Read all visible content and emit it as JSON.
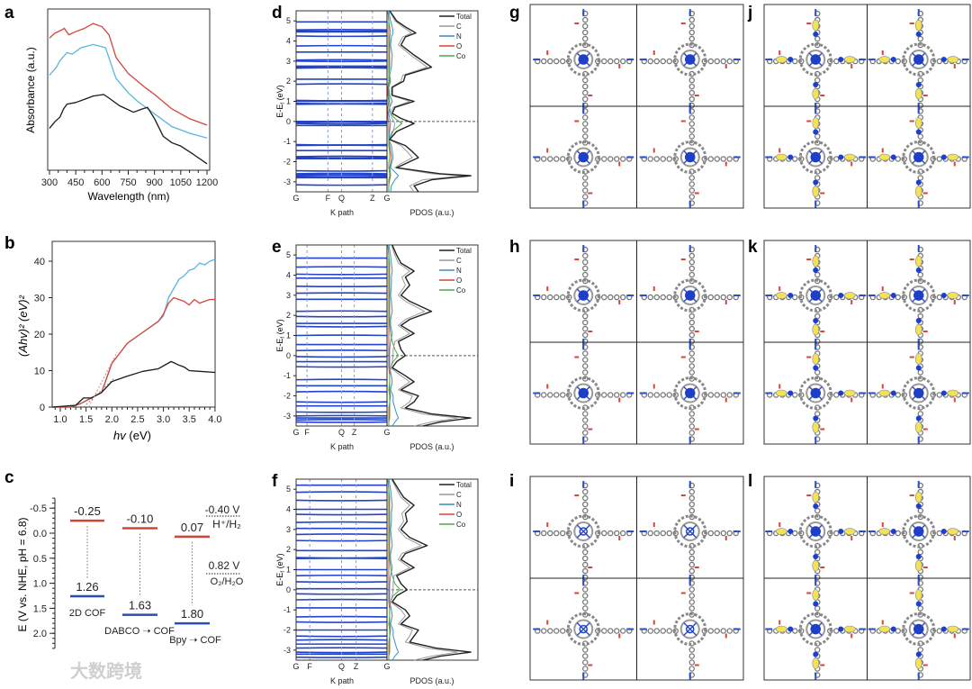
{
  "panel_labels": [
    "a",
    "b",
    "c",
    "d",
    "e",
    "f",
    "g",
    "h",
    "i",
    "j",
    "k",
    "l"
  ],
  "watermark": "大数跨境",
  "chart_data": [
    {
      "id": "a",
      "type": "line",
      "xlabel": "Wavelength (nm)",
      "ylabel": "Absorbance (a.u.)",
      "xlim": [
        300,
        1200
      ],
      "ylim": [
        0,
        1
      ],
      "xticks": [
        300,
        450,
        600,
        750,
        900,
        1050,
        1200
      ],
      "series": [
        {
          "name": "red",
          "color": "#d0473a",
          "x": [
            300,
            330,
            370,
            385,
            410,
            450,
            500,
            550,
            600,
            640,
            680,
            750,
            850,
            900,
            1000,
            1100,
            1200
          ],
          "y": [
            0.82,
            0.85,
            0.87,
            0.88,
            0.84,
            0.86,
            0.88,
            0.91,
            0.89,
            0.84,
            0.7,
            0.6,
            0.51,
            0.47,
            0.38,
            0.32,
            0.28
          ]
        },
        {
          "name": "blue",
          "color": "#5bb5de",
          "x": [
            300,
            340,
            360,
            400,
            430,
            480,
            550,
            620,
            680,
            750,
            800,
            900,
            1000,
            1100,
            1200
          ],
          "y": [
            0.59,
            0.64,
            0.68,
            0.73,
            0.72,
            0.76,
            0.78,
            0.76,
            0.57,
            0.48,
            0.43,
            0.35,
            0.27,
            0.23,
            0.2
          ]
        },
        {
          "name": "black",
          "color": "#1a1a1a",
          "x": [
            300,
            330,
            360,
            380,
            400,
            450,
            500,
            550,
            610,
            650,
            700,
            780,
            830,
            860,
            900,
            950,
            1000,
            1050,
            1120,
            1200
          ],
          "y": [
            0.26,
            0.3,
            0.33,
            0.38,
            0.41,
            0.42,
            0.44,
            0.46,
            0.47,
            0.44,
            0.4,
            0.36,
            0.38,
            0.39,
            0.32,
            0.21,
            0.17,
            0.15,
            0.1,
            0.04
          ]
        }
      ]
    },
    {
      "id": "b",
      "type": "line",
      "xlabel_italic": "hv",
      "xlabel_unit": " (eV)",
      "ylabel": "(Ahv)² (eV)²",
      "xlim": [
        0.84,
        4.0
      ],
      "ylim": [
        0,
        45
      ],
      "xticks": [
        1.0,
        1.5,
        2.0,
        2.5,
        3.0,
        3.5,
        4.0
      ],
      "yticks": [
        0,
        10,
        20,
        30,
        40
      ],
      "series": [
        {
          "name": "blue",
          "color": "#5bb5de",
          "x": [
            0.84,
            1.2,
            1.4,
            1.6,
            1.8,
            2.0,
            2.3,
            2.6,
            2.9,
            3.0,
            3.1,
            3.3,
            3.4,
            3.5,
            3.6,
            3.7,
            3.8,
            3.9,
            4.0
          ],
          "y": [
            0,
            0,
            1,
            2.5,
            4,
            12,
            17.5,
            20.5,
            23.5,
            25,
            30,
            35,
            36,
            37.5,
            38,
            39.5,
            39,
            40,
            40.5
          ]
        },
        {
          "name": "red",
          "color": "#d0473a",
          "x": [
            0.84,
            1.2,
            1.4,
            1.6,
            1.8,
            2.0,
            2.3,
            2.6,
            2.9,
            3.0,
            3.1,
            3.2,
            3.3,
            3.4,
            3.5,
            3.6,
            3.7,
            3.8,
            3.9,
            4.0
          ],
          "y": [
            0,
            0,
            1,
            2.5,
            4,
            12,
            17.5,
            20.5,
            23.5,
            25.5,
            28.5,
            30,
            29.5,
            29,
            28,
            29.5,
            28.5,
            29,
            29.5,
            29.5
          ]
        },
        {
          "name": "black",
          "color": "#1a1a1a",
          "x": [
            0.84,
            1.3,
            1.45,
            1.6,
            1.8,
            2.0,
            2.3,
            2.6,
            2.9,
            3.15,
            3.3,
            3.4,
            3.5,
            3.7,
            4.0
          ],
          "y": [
            0,
            0.5,
            2.5,
            2.5,
            4,
            7,
            8.5,
            9.8,
            10.5,
            12.5,
            11.5,
            11,
            10,
            9.8,
            9.5
          ]
        }
      ]
    },
    {
      "id": "c",
      "type": "bar",
      "ylabel": "E (V vs. NHE, pH = 6.8)",
      "ylim": [
        -0.7,
        2.3
      ],
      "yticks": [
        "-0.5",
        "0.0",
        "0.5",
        "1.0",
        "1.5",
        "2.0"
      ],
      "ytick_values": [
        -0.5,
        0,
        0.5,
        1,
        1.5,
        2
      ],
      "materials": [
        {
          "name": "2D COF",
          "cb": -0.25,
          "vb": 1.26,
          "cb_label": "-0.25",
          "vb_label": "1.26"
        },
        {
          "name": "DABCO ➝ COF",
          "cb": -0.1,
          "vb": 1.63,
          "cb_label": "-0.10",
          "vb_label": "1.63"
        },
        {
          "name": "Bpy ➝ COF",
          "cb": 0.07,
          "vb": 1.8,
          "cb_label": "0.07",
          "vb_label": "1.80"
        }
      ],
      "references": [
        {
          "value_label": "-0.40 V",
          "couple": "H⁺/H₂"
        },
        {
          "value_label": "0.82 V",
          "couple": "O₂/H₂O"
        }
      ],
      "colors": {
        "cb": "#d0473a",
        "vb": "#2a4fb0"
      }
    },
    {
      "id": "d",
      "type": "line",
      "ylabel": "E-E",
      "ylabel_sub": "f",
      "ylabel_unit": " (eV)",
      "xlabel_bands": "K path",
      "xlabel_pdos": "PDOS (a.u.)",
      "ylim": [
        -3.5,
        5.5
      ],
      "yticks": [
        5,
        4,
        3,
        2,
        1,
        0,
        -1,
        -2,
        -3
      ],
      "kpoints": [
        {
          "label": "G",
          "pos": 0
        },
        {
          "label": "F",
          "pos": 0.35
        },
        {
          "label": "Q",
          "pos": 0.5
        },
        {
          "label": "Z",
          "pos": 0.84
        },
        {
          "label": "G",
          "pos": 1
        }
      ],
      "bands": [
        4.95,
        4.55,
        4.5,
        4.45,
        4.25,
        3.75,
        3.45,
        3.05,
        3.0,
        2.75,
        2.7,
        2.65,
        2.1,
        1.85,
        1.05,
        1.0,
        0.9,
        0.85,
        0.0,
        -0.05,
        -0.1,
        -0.2,
        -1.15,
        -1.2,
        -1.45,
        -1.75,
        -1.8,
        -1.85,
        -2.45,
        -2.6,
        -2.65,
        -2.7,
        -2.75,
        -2.8,
        -3.15
      ],
      "legend": [
        "Total",
        "C",
        "N",
        "O",
        "Co"
      ],
      "pdos": {
        "E": [
          5.5,
          5.0,
          4.7,
          4.4,
          4.2,
          3.8,
          3.3,
          2.7,
          2.3,
          2.0,
          1.7,
          1.3,
          1.0,
          0.7,
          0.4,
          0.15,
          -0.1,
          -0.5,
          -0.9,
          -1.2,
          -1.5,
          -1.8,
          -2.1,
          -2.3,
          -2.6,
          -2.7,
          -2.9,
          -3.2,
          -3.5
        ],
        "Total": [
          0.02,
          0.1,
          0.2,
          0.32,
          0.2,
          0.15,
          0.3,
          0.5,
          0.2,
          0.18,
          0.05,
          0.05,
          0.3,
          0.08,
          0.05,
          0.15,
          0.3,
          0.1,
          0.02,
          0.2,
          0.28,
          0.35,
          0.2,
          0.1,
          0.6,
          0.95,
          0.5,
          0.3,
          0.35
        ],
        "C": [
          0.02,
          0.08,
          0.17,
          0.27,
          0.17,
          0.12,
          0.26,
          0.45,
          0.17,
          0.15,
          0.04,
          0.04,
          0.25,
          0.06,
          0.03,
          0.05,
          0.08,
          0.06,
          0.02,
          0.15,
          0.22,
          0.28,
          0.15,
          0.08,
          0.5,
          0.85,
          0.4,
          0.25,
          0.3
        ],
        "N": [
          0.01,
          0.03,
          0.05,
          0.06,
          0.04,
          0.03,
          0.05,
          0.04,
          0.02,
          0.03,
          0.01,
          0.02,
          0.05,
          0.02,
          0.01,
          0.02,
          0.03,
          0.02,
          0.01,
          0.04,
          0.05,
          0.06,
          0.04,
          0.03,
          0.1,
          0.12,
          0.08,
          0.04,
          0.03
        ],
        "O": [
          0,
          0.01,
          0.01,
          0.01,
          0.01,
          0.01,
          0.01,
          0.01,
          0.01,
          0.01,
          0,
          0,
          0.01,
          0,
          0,
          0,
          0.01,
          0.01,
          0.01,
          0.02,
          0.03,
          0.04,
          0.03,
          0.02,
          0.03,
          0.03,
          0.02,
          0.01,
          0.01
        ],
        "Co": [
          0,
          0.01,
          0.02,
          0.03,
          0.02,
          0.02,
          0.02,
          0.02,
          0.01,
          0.02,
          0.01,
          0.01,
          0.02,
          0.02,
          0.03,
          0.08,
          0.16,
          0.05,
          0.01,
          0.01,
          0.02,
          0.02,
          0.01,
          0.01,
          0.02,
          0.02,
          0.01,
          0.01,
          0.01
        ]
      }
    },
    {
      "id": "e",
      "type": "line",
      "ylabel": "E-E",
      "ylabel_sub": "f",
      "ylabel_unit": " (eV)",
      "xlabel_bands": "K path",
      "xlabel_pdos": "PDOS (a.u.)",
      "ylim": [
        -3.5,
        5.5
      ],
      "yticks": [
        5,
        4,
        3,
        2,
        1,
        0,
        -1,
        -2,
        -3
      ],
      "kpoints": [
        {
          "label": "G",
          "pos": 0
        },
        {
          "label": "F",
          "pos": 0.12
        },
        {
          "label": "Q",
          "pos": 0.5
        },
        {
          "label": "Z",
          "pos": 0.64
        },
        {
          "label": "G",
          "pos": 1
        }
      ],
      "bands": [
        4.85,
        4.4,
        4.05,
        3.85,
        3.45,
        3.1,
        2.8,
        2.2,
        1.95,
        1.6,
        1.45,
        1.0,
        0.55,
        0.25,
        -0.05,
        -0.3,
        -0.55,
        -1.2,
        -1.5,
        -1.8,
        -2.3,
        -2.5,
        -2.8,
        -3.0,
        -3.1,
        -3.2,
        -3.3
      ],
      "legend": [
        "Total",
        "C",
        "N",
        "O",
        "Co"
      ],
      "pdos": {
        "E": [
          5.5,
          5.0,
          4.6,
          4.2,
          3.9,
          3.5,
          3.0,
          2.7,
          2.2,
          1.8,
          1.5,
          1.1,
          0.7,
          0.3,
          0.0,
          -0.3,
          -0.6,
          -1.0,
          -1.3,
          -1.7,
          -2.0,
          -2.3,
          -2.6,
          -2.9,
          -3.1,
          -3.3,
          -3.5
        ],
        "Total": [
          0.05,
          0.1,
          0.15,
          0.3,
          0.2,
          0.25,
          0.15,
          0.25,
          0.5,
          0.25,
          0.15,
          0.3,
          0.12,
          0.15,
          0.2,
          0.1,
          0.05,
          0.2,
          0.3,
          0.15,
          0.35,
          0.3,
          0.2,
          0.5,
          0.95,
          0.6,
          0.4
        ],
        "C": [
          0.04,
          0.08,
          0.12,
          0.25,
          0.16,
          0.2,
          0.12,
          0.2,
          0.42,
          0.2,
          0.12,
          0.25,
          0.08,
          0.06,
          0.06,
          0.05,
          0.03,
          0.15,
          0.25,
          0.12,
          0.28,
          0.25,
          0.15,
          0.4,
          0.8,
          0.5,
          0.3
        ],
        "N": [
          0.01,
          0.03,
          0.04,
          0.05,
          0.04,
          0.04,
          0.03,
          0.04,
          0.05,
          0.03,
          0.03,
          0.05,
          0.03,
          0.02,
          0.02,
          0.02,
          0.02,
          0.04,
          0.05,
          0.03,
          0.06,
          0.06,
          0.08,
          0.1,
          0.12,
          0.08,
          0.05
        ],
        "O": [
          0,
          0.01,
          0.01,
          0.01,
          0.01,
          0.01,
          0.01,
          0.01,
          0.01,
          0.01,
          0.01,
          0.01,
          0.01,
          0.01,
          0.01,
          0.01,
          0.01,
          0.02,
          0.02,
          0.02,
          0.03,
          0.02,
          0.02,
          0.02,
          0.02,
          0.01,
          0.01
        ],
        "Co": [
          0,
          0.01,
          0.02,
          0.02,
          0.02,
          0.02,
          0.02,
          0.02,
          0.02,
          0.02,
          0.02,
          0.03,
          0.05,
          0.08,
          0.12,
          0.06,
          0.03,
          0.02,
          0.02,
          0.01,
          0.02,
          0.02,
          0.01,
          0.01,
          0.01,
          0.01,
          0.01
        ]
      }
    },
    {
      "id": "f",
      "type": "line",
      "ylabel": "E-E",
      "ylabel_sub": "f",
      "ylabel_unit": " (eV)",
      "xlabel_bands": "K path",
      "xlabel_pdos": "PDOS (a.u.)",
      "ylim": [
        -3.5,
        5.5
      ],
      "yticks": [
        5,
        4,
        3,
        2,
        1,
        0,
        -1,
        -2,
        -3
      ],
      "kpoints": [
        {
          "label": "G",
          "pos": 0
        },
        {
          "label": "F",
          "pos": 0.15
        },
        {
          "label": "Q",
          "pos": 0.5
        },
        {
          "label": "Z",
          "pos": 0.66
        },
        {
          "label": "G",
          "pos": 1
        }
      ],
      "bands": [
        5.2,
        4.85,
        4.45,
        4.0,
        3.75,
        3.35,
        3.05,
        2.75,
        2.45,
        1.95,
        1.6,
        1.55,
        1.0,
        0.7,
        0.4,
        0.05,
        -0.2,
        -0.5,
        -0.9,
        -1.35,
        -1.6,
        -2.0,
        -2.3,
        -2.5,
        -2.7,
        -2.9,
        -3.1,
        -3.2,
        -3.35
      ],
      "legend": [
        "Total",
        "C",
        "N",
        "O",
        "Co"
      ],
      "pdos": {
        "E": [
          5.5,
          5.0,
          4.6,
          4.2,
          3.8,
          3.4,
          3.0,
          2.6,
          2.2,
          1.8,
          1.5,
          1.1,
          0.7,
          0.3,
          0.0,
          -0.3,
          -0.6,
          -1.0,
          -1.3,
          -1.7,
          -2.0,
          -2.3,
          -2.6,
          -2.9,
          -3.1,
          -3.3,
          -3.5
        ],
        "Total": [
          0.05,
          0.12,
          0.18,
          0.3,
          0.2,
          0.22,
          0.15,
          0.25,
          0.45,
          0.2,
          0.15,
          0.3,
          0.1,
          0.15,
          0.22,
          0.1,
          0.05,
          0.2,
          0.25,
          0.15,
          0.35,
          0.3,
          0.25,
          0.55,
          0.95,
          0.6,
          0.4
        ],
        "C": [
          0.04,
          0.1,
          0.15,
          0.25,
          0.16,
          0.18,
          0.12,
          0.2,
          0.38,
          0.16,
          0.12,
          0.25,
          0.07,
          0.06,
          0.06,
          0.05,
          0.03,
          0.15,
          0.2,
          0.12,
          0.28,
          0.25,
          0.2,
          0.45,
          0.8,
          0.5,
          0.3
        ],
        "N": [
          0.01,
          0.03,
          0.04,
          0.05,
          0.04,
          0.04,
          0.03,
          0.04,
          0.05,
          0.03,
          0.03,
          0.05,
          0.03,
          0.02,
          0.02,
          0.02,
          0.02,
          0.04,
          0.05,
          0.03,
          0.06,
          0.06,
          0.08,
          0.1,
          0.12,
          0.08,
          0.05
        ],
        "O": [
          0,
          0.01,
          0.01,
          0.01,
          0.01,
          0.01,
          0.01,
          0.01,
          0.01,
          0.01,
          0.01,
          0.01,
          0.01,
          0.01,
          0.01,
          0.01,
          0.01,
          0.02,
          0.02,
          0.02,
          0.03,
          0.02,
          0.02,
          0.02,
          0.02,
          0.01,
          0.01
        ],
        "Co": [
          0,
          0.01,
          0.02,
          0.02,
          0.02,
          0.02,
          0.02,
          0.02,
          0.02,
          0.02,
          0.02,
          0.03,
          0.05,
          0.08,
          0.14,
          0.06,
          0.03,
          0.02,
          0.02,
          0.01,
          0.02,
          0.02,
          0.01,
          0.01,
          0.01,
          0.01,
          0.01
        ]
      }
    }
  ],
  "pdos_colors": {
    "Total": "#222222",
    "C": "#9a9a9a",
    "N": "#3a8fc8",
    "O": "#d0473a",
    "Co": "#4aa84a"
  },
  "band_color": "#2343c8",
  "structures": [
    {
      "id": "g",
      "type": "structure",
      "density_lobes": false
    },
    {
      "id": "h",
      "type": "structure",
      "density_lobes": false
    },
    {
      "id": "i",
      "type": "structure",
      "density_lobes": false
    },
    {
      "id": "j",
      "type": "structure",
      "density_lobes": true
    },
    {
      "id": "k",
      "type": "structure",
      "density_lobes": true
    },
    {
      "id": "l",
      "type": "structure",
      "density_lobes": true
    }
  ]
}
